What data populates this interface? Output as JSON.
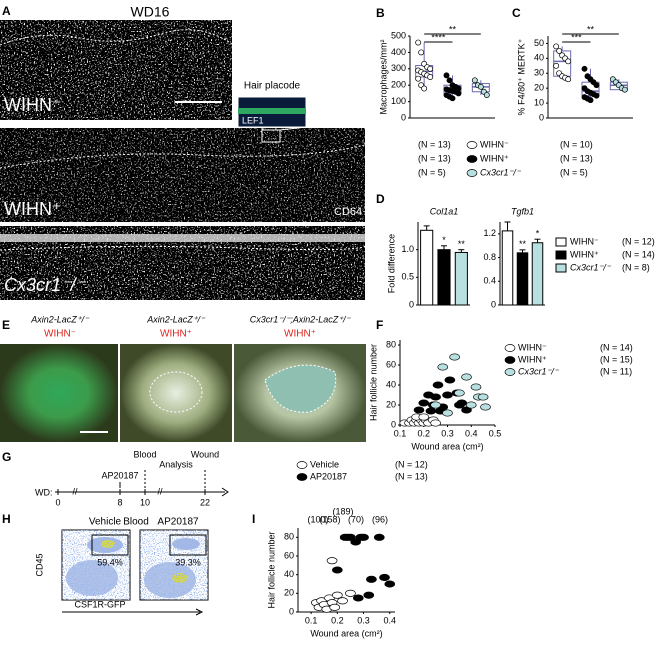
{
  "panel_labels": [
    "A",
    "B",
    "C",
    "D",
    "E",
    "F",
    "G",
    "H",
    "I"
  ],
  "panel_a": {
    "title": "WD16",
    "conditions": [
      "WIHN⁻",
      "WIHN⁺",
      "Cx3cr1⁻/⁻"
    ],
    "inset_title": "Hair placode",
    "inset_stain": "LEF1",
    "stain": "CD64"
  },
  "legend_bc": {
    "n_left": [
      "(N = 13)",
      "(N = 13)",
      "(N = 5)"
    ],
    "names": [
      "WIHN⁻",
      "WIHN⁺",
      "Cx3cr1⁻/⁻"
    ],
    "n_right": [
      "(N = 10)",
      "(N = 13)",
      "(N = 5)"
    ],
    "colors": [
      "#ffffff",
      "#000000",
      "#b8e0e0"
    ]
  },
  "legend_d": {
    "names": [
      "WIHN⁻",
      "WIHN⁺",
      "Cx3cr1⁻/⁻"
    ],
    "n": [
      "(N = 12)",
      "(N = 14)",
      "(N = 8)"
    ]
  },
  "panel_e": {
    "genotypes": [
      "Axin2-LacZ⁺/⁻",
      "Axin2-LacZ⁺/⁻",
      "Cx3cr1⁻/⁻;Axin2-LacZ⁺/⁻"
    ],
    "conditions": [
      "WIHN⁻",
      "WIHN⁺",
      "WIHN⁺"
    ]
  },
  "panel_g": {
    "axis_label": "WD:",
    "ticks": [
      0,
      8,
      10,
      22
    ],
    "events": [
      {
        "label": "AP20187",
        "day": 8
      },
      {
        "label": "Blood",
        "day": 10
      },
      {
        "label": "Wound",
        "day": 22
      }
    ],
    "span_label": "Analysis"
  },
  "panel_h": {
    "y_label": "CD45",
    "x_label": "CSF1R-GFP",
    "center_label": "Blood",
    "plots": [
      {
        "title": "Vehicle",
        "gate": "59.4%"
      },
      {
        "title": "AP20187",
        "gate": "39.3%"
      }
    ]
  },
  "chart_data": [
    {
      "type": "box",
      "y_label": "Macrophages/mm²",
      "ylim": [
        0,
        500
      ],
      "yticks": [
        0,
        100,
        200,
        300,
        400,
        500
      ],
      "significance": [
        "****",
        "**"
      ],
      "series": [
        {
          "color": "#ffffff",
          "box": [
            250,
            285,
            320
          ],
          "values": [
            460,
            400,
            330,
            310,
            300,
            290,
            280,
            270,
            260,
            250,
            240,
            200,
            180
          ]
        },
        {
          "color": "#000000",
          "box": [
            150,
            175,
            200
          ],
          "values": [
            260,
            230,
            200,
            190,
            180,
            175,
            170,
            165,
            160,
            150,
            140,
            130,
            120
          ]
        },
        {
          "color": "#b8e0e0",
          "box": [
            160,
            190,
            210
          ],
          "values": [
            230,
            200,
            190,
            160,
            140
          ]
        }
      ]
    },
    {
      "type": "box",
      "y_label": "% F4/80⁺ MERTK⁺",
      "ylim": [
        0,
        55
      ],
      "yticks": [
        0,
        10,
        20,
        30,
        40,
        50
      ],
      "significance": [
        "***",
        "**"
      ],
      "series": [
        {
          "color": "#ffffff",
          "box": [
            28,
            38,
            45
          ],
          "values": [
            48,
            45,
            42,
            40,
            38,
            35,
            30,
            28,
            27,
            26
          ]
        },
        {
          "color": "#000000",
          "box": [
            15,
            18,
            24
          ],
          "values": [
            33,
            28,
            26,
            24,
            22,
            20,
            18,
            17,
            16,
            15,
            14,
            13,
            12
          ]
        },
        {
          "color": "#b8e0e0",
          "box": [
            19,
            22,
            24
          ],
          "values": [
            26,
            24,
            22,
            20,
            19
          ]
        }
      ]
    },
    {
      "type": "bar",
      "title": "Col1a1",
      "y_label": "Fold difference",
      "ylim": [
        0,
        1.5
      ],
      "yticks": [
        0,
        0.5,
        {
          "value": 1,
          "label": "1.0"
        }
      ],
      "values": [
        1.35,
        1.0,
        0.95
      ],
      "errors": [
        0.08,
        0.07,
        0.05
      ],
      "colors": [
        "#ffffff",
        "#000000",
        "#b8e0e0"
      ],
      "stars": [
        null,
        "*",
        "**"
      ]
    },
    {
      "type": "bar",
      "title": "Tgfb1",
      "ylim": [
        0,
        1.4
      ],
      "yticks": [
        0,
        0.4,
        0.8,
        1.2
      ],
      "values": [
        1.25,
        0.88,
        1.05
      ],
      "errors": [
        0.15,
        0.05,
        0.06
      ],
      "colors": [
        "#ffffff",
        "#000000",
        "#b8e0e0"
      ],
      "stars": [
        null,
        "**",
        "*"
      ]
    },
    {
      "type": "scatter",
      "x_label": "Wound area (cm²)",
      "y_label": "Hair follicle number",
      "xlim": [
        0.1,
        0.5
      ],
      "xticks": [
        0.1,
        0.2,
        0.3,
        0.4,
        0.5
      ],
      "ylim": [
        0,
        85
      ],
      "yticks": [
        0,
        20,
        40,
        60,
        80
      ],
      "series": [
        {
          "name": "WIHN⁻",
          "n": "(N = 14)",
          "color": "#ffffff",
          "x": [
            0.12,
            0.14,
            0.15,
            0.16,
            0.17,
            0.18,
            0.19,
            0.2,
            0.21,
            0.22,
            0.24,
            0.25,
            0.17,
            0.2
          ],
          "values": [
            2,
            2,
            5,
            2,
            5,
            2,
            5,
            2,
            5,
            2,
            5,
            2,
            8,
            8
          ]
        },
        {
          "name": "WIHN⁺",
          "n": "(N = 15)",
          "color": "#000000",
          "x": [
            0.18,
            0.2,
            0.22,
            0.23,
            0.24,
            0.25,
            0.26,
            0.27,
            0.28,
            0.3,
            0.31,
            0.34,
            0.35,
            0.36,
            0.38
          ],
          "values": [
            15,
            22,
            30,
            14,
            20,
            28,
            40,
            14,
            18,
            30,
            45,
            32,
            20,
            22,
            15
          ]
        },
        {
          "name": "Cx3cr1⁻/⁻",
          "n": "(N = 11)",
          "color": "#b8e0e0",
          "x": [
            0.25,
            0.28,
            0.33,
            0.35,
            0.38,
            0.4,
            0.42,
            0.43,
            0.45,
            0.46,
            0.3
          ],
          "values": [
            20,
            58,
            68,
            32,
            48,
            20,
            38,
            28,
            28,
            18,
            12
          ]
        }
      ]
    },
    {
      "type": "scatter",
      "x_label": "Wound area (cm²)",
      "y_label": "Hair follicle number",
      "xlim": [
        0.05,
        0.42
      ],
      "xticks": [
        0.1,
        0.2,
        0.3,
        0.4
      ],
      "ylim": [
        0,
        90
      ],
      "yticks": [
        0,
        20,
        40,
        60,
        80
      ],
      "annotations": [
        "(100)",
        "(158)",
        "(189)",
        "(70)",
        "(96)"
      ],
      "series": [
        {
          "name": "Vehicle",
          "n": "(N = 12)",
          "color": "#ffffff",
          "x": [
            0.12,
            0.13,
            0.14,
            0.15,
            0.16,
            0.17,
            0.18,
            0.19,
            0.2,
            0.18,
            0.22,
            0.25
          ],
          "values": [
            10,
            5,
            12,
            8,
            3,
            15,
            10,
            5,
            18,
            55,
            12,
            20
          ]
        },
        {
          "name": "AP20187",
          "n": "(N = 13)",
          "color": "#000000",
          "x": [
            0.2,
            0.23,
            0.24,
            0.25,
            0.27,
            0.29,
            0.3,
            0.32,
            0.33,
            0.36,
            0.38,
            0.4,
            0.28
          ],
          "values": [
            45,
            80,
            80,
            80,
            75,
            80,
            80,
            18,
            35,
            80,
            37,
            30,
            15
          ]
        }
      ]
    }
  ]
}
